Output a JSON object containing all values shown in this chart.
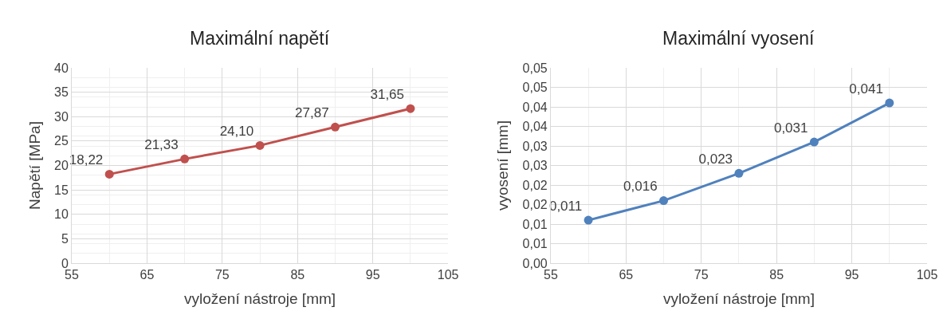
{
  "chart_data": [
    {
      "type": "line",
      "title": "Maximální napětí",
      "xlabel": "vyložení nástroje [mm]",
      "ylabel": "Napětí [MPa]",
      "x": [
        60,
        70,
        80,
        90,
        100
      ],
      "series": [
        {
          "color": "#c0504d",
          "values": [
            18.22,
            21.33,
            24.1,
            27.87,
            31.65
          ],
          "value_labels": [
            "18,22",
            "21,33",
            "24,10",
            "27,87",
            "31,65"
          ]
        }
      ],
      "xlim": [
        55,
        105
      ],
      "xticks": [
        55,
        65,
        75,
        85,
        95,
        105
      ],
      "ylim": [
        0,
        40
      ],
      "yticks": [
        0,
        5,
        10,
        15,
        20,
        25,
        30,
        35,
        40
      ],
      "grid": true,
      "marker": "circle",
      "line_style": "solid"
    },
    {
      "type": "line",
      "title": "Maximální vyosení",
      "xlabel": "vyložení nástroje [mm]",
      "ylabel": "vyosení [mm]",
      "x": [
        60,
        70,
        80,
        90,
        100
      ],
      "series": [
        {
          "color": "#4f81bd",
          "values": [
            0.011,
            0.016,
            0.023,
            0.031,
            0.041
          ],
          "value_labels": [
            "0,011",
            "0,016",
            "0,023",
            "0,031",
            "0,041"
          ]
        }
      ],
      "xlim": [
        55,
        105
      ],
      "xticks": [
        55,
        65,
        75,
        85,
        95,
        105
      ],
      "ylim": [
        0,
        0.05
      ],
      "yticks": [
        {
          "value": 0,
          "label": "0,00"
        },
        {
          "value": 0.005,
          "label": "0,01"
        },
        {
          "value": 0.01,
          "label": "0,01"
        },
        {
          "value": 0.015,
          "label": "0,02"
        },
        {
          "value": 0.02,
          "label": "0,02"
        },
        {
          "value": 0.025,
          "label": "0,03"
        },
        {
          "value": 0.03,
          "label": "0,03"
        },
        {
          "value": 0.035,
          "label": "0,04"
        },
        {
          "value": 0.04,
          "label": "0,04"
        },
        {
          "value": 0.045,
          "label": "0,05"
        },
        {
          "value": 0.05,
          "label": "0,05"
        }
      ],
      "grid": true,
      "marker": "circle",
      "line_style": "solid"
    }
  ]
}
